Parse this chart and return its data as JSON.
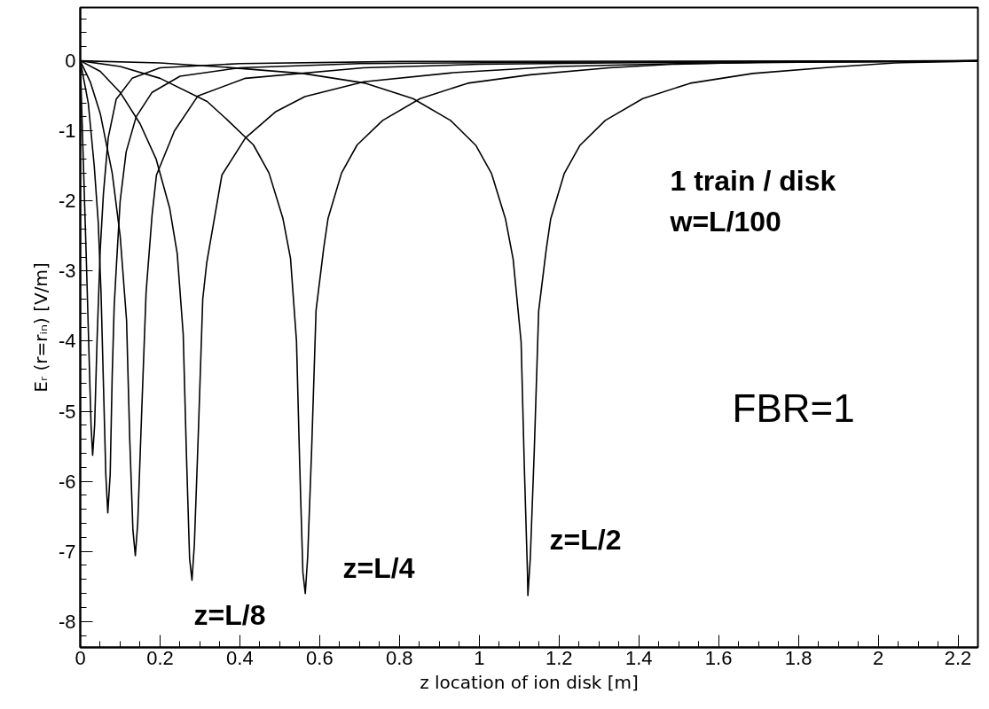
{
  "chart_data": {
    "type": "line",
    "xlabel": "z location of ion disk [m]",
    "ylabel": "Eᵣ (r=rᵢₙ) [V/m]",
    "xlim": [
      0,
      2.25
    ],
    "ylim": [
      -8.37,
      0.76
    ],
    "xticks": [
      0,
      0.2,
      0.4,
      0.6,
      0.8,
      1,
      1.2,
      1.4,
      1.6,
      1.8,
      2,
      2.2
    ],
    "yticks": [
      -8,
      -7,
      -6,
      -5,
      -4,
      -3,
      -2,
      -1,
      0
    ],
    "grid": false,
    "marker": "none",
    "line_style": "solid",
    "series": [
      {
        "color": "#000000",
        "x": [
          0,
          0.008,
          0.015,
          0.022,
          0.027,
          0.031,
          0.036,
          0.042,
          0.05,
          0.058,
          0.07,
          0.09,
          0.13,
          0.2,
          0.4,
          0.8,
          2.25
        ],
        "values": [
          0,
          -1.5,
          -2.8,
          -4.2,
          -5.2,
          -5.63,
          -5.2,
          -4.0,
          -2.7,
          -1.9,
          -1.1,
          -0.55,
          -0.25,
          -0.1,
          -0.04,
          -0.01,
          0
        ]
      },
      {
        "color": "#000000",
        "x": [
          0,
          0.02,
          0.035,
          0.045,
          0.052,
          0.058,
          0.064,
          0.069,
          0.075,
          0.08,
          0.085,
          0.091,
          0.1,
          0.115,
          0.14,
          0.18,
          0.25,
          0.4,
          0.7,
          1.2,
          2.25
        ],
        "values": [
          0,
          -0.6,
          -1.5,
          -2.3,
          -3.3,
          -4.6,
          -5.9,
          -6.45,
          -5.9,
          -4.5,
          -3.5,
          -2.88,
          -2.0,
          -1.3,
          -0.8,
          -0.45,
          -0.22,
          -0.1,
          -0.04,
          -0.02,
          0
        ]
      },
      {
        "color": "#000000",
        "x": [
          0,
          0.025,
          0.05,
          0.08,
          0.1,
          0.116,
          0.124,
          0.132,
          0.138,
          0.144,
          0.154,
          0.165,
          0.18,
          0.191,
          0.236,
          0.295,
          0.414,
          0.71,
          1.0,
          1.5,
          2.0,
          2.25
        ],
        "values": [
          0,
          -0.3,
          -0.75,
          -1.6,
          -2.5,
          -3.7,
          -5.4,
          -6.7,
          -7.06,
          -6.6,
          -5.0,
          -3.3,
          -2.2,
          -1.63,
          -1.0,
          -0.5,
          -0.25,
          -0.1,
          -0.05,
          -0.02,
          -0.01,
          0
        ]
      },
      {
        "color": "#000000",
        "x": [
          0,
          0.05,
          0.1,
          0.15,
          0.19,
          0.224,
          0.243,
          0.258,
          0.266,
          0.274,
          0.28,
          0.286,
          0.296,
          0.307,
          0.317,
          0.355,
          0.414,
          0.489,
          0.563,
          0.711,
          0.934,
          1.2,
          1.5,
          1.8,
          2.1,
          2.25
        ],
        "values": [
          0,
          -0.15,
          -0.45,
          -0.9,
          -1.4,
          -2.1,
          -2.75,
          -3.9,
          -5.6,
          -7.1,
          -7.41,
          -6.9,
          -5.3,
          -3.4,
          -2.88,
          -1.63,
          -1.1,
          -0.73,
          -0.51,
          -0.3,
          -0.17,
          -0.08,
          -0.04,
          -0.02,
          -0.01,
          0
        ]
      },
      {
        "color": "#000000",
        "x": [
          0,
          0.1,
          0.2,
          0.318,
          0.37,
          0.434,
          0.473,
          0.508,
          0.527,
          0.542,
          0.55,
          0.558,
          0.564,
          0.57,
          0.58,
          0.591,
          0.61,
          0.621,
          0.655,
          0.694,
          0.758,
          0.852,
          0.971,
          1.128,
          1.326,
          1.484,
          1.7,
          2.0,
          2.25
        ],
        "values": [
          0,
          -0.08,
          -0.25,
          -0.58,
          -0.85,
          -1.2,
          -1.6,
          -2.25,
          -2.82,
          -4.0,
          -5.76,
          -7.3,
          -7.6,
          -7.08,
          -5.54,
          -3.56,
          -2.68,
          -2.25,
          -1.6,
          -1.2,
          -0.85,
          -0.54,
          -0.32,
          -0.2,
          -0.1,
          -0.05,
          -0.02,
          -0.01,
          0
        ]
      },
      {
        "color": "#000000",
        "x": [
          0,
          0.2,
          0.36,
          0.558,
          0.715,
          0.834,
          0.928,
          0.992,
          1.031,
          1.066,
          1.085,
          1.105,
          1.113,
          1.121,
          1.122,
          1.128,
          1.138,
          1.149,
          1.168,
          1.179,
          1.213,
          1.252,
          1.316,
          1.41,
          1.529,
          1.686,
          1.884,
          2.042,
          2.2,
          2.25
        ],
        "values": [
          0,
          -0.03,
          -0.09,
          -0.18,
          -0.32,
          -0.54,
          -0.85,
          -1.21,
          -1.61,
          -2.26,
          -2.83,
          -4.01,
          -5.78,
          -7.32,
          -7.63,
          -7.1,
          -5.56,
          -3.57,
          -2.69,
          -2.26,
          -1.61,
          -1.21,
          -0.85,
          -0.54,
          -0.32,
          -0.18,
          -0.09,
          -0.03,
          -0.01,
          0
        ]
      }
    ],
    "annotations": [
      "1 train / disk",
      "w=L/100",
      "FBR=1",
      "z=L/8",
      "z=L/4",
      "z=L/2"
    ]
  }
}
